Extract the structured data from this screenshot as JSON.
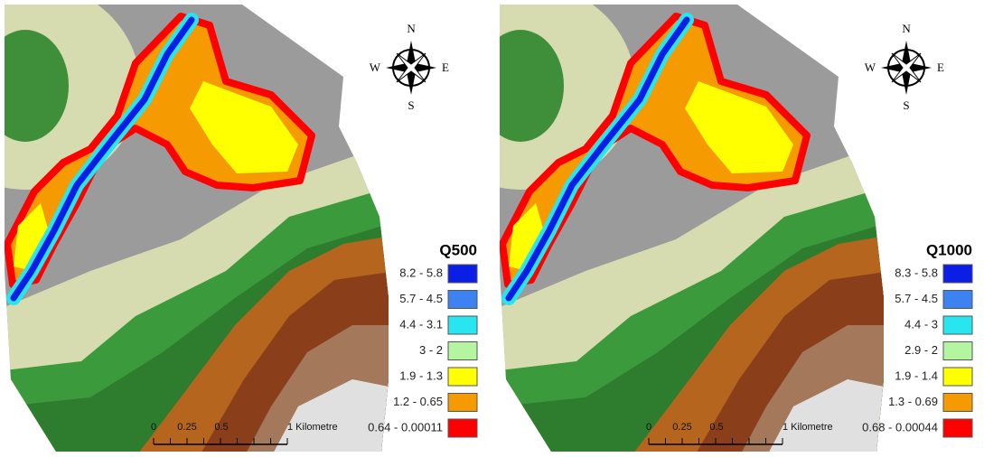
{
  "panels": [
    {
      "title": "Q500",
      "compass": {
        "n": "N",
        "e": "E",
        "s": "S",
        "w": "W"
      },
      "scale_labels": [
        "0",
        "0.25",
        "0.5",
        "1 Kilometre"
      ],
      "legend": [
        {
          "label": "8.2 - 5.8",
          "color": "#0a1ee6"
        },
        {
          "label": "5.7 - 4.5",
          "color": "#3c82f0"
        },
        {
          "label": "4.4 - 3.1",
          "color": "#28e6f0"
        },
        {
          "label": "3 - 2",
          "color": "#b4f5a0"
        },
        {
          "label": "1.9 - 1.3",
          "color": "#ffff00"
        },
        {
          "label": "1.2 - 0.65",
          "color": "#f59a00"
        },
        {
          "label": "0.64 - 0.00011",
          "color": "#ff0000"
        }
      ]
    },
    {
      "title": "Q1000",
      "compass": {
        "n": "N",
        "e": "E",
        "s": "S",
        "w": "W"
      },
      "scale_labels": [
        "0",
        "0.25",
        "0.5",
        "1 Kilometre"
      ],
      "legend": [
        {
          "label": "8.3 - 5.8",
          "color": "#0a1ee6"
        },
        {
          "label": "5.7 - 4.5",
          "color": "#3c82f0"
        },
        {
          "label": "4.4 - 3",
          "color": "#28e6f0"
        },
        {
          "label": "2.9 - 2",
          "color": "#b4f5a0"
        },
        {
          "label": "1.9 - 1.4",
          "color": "#ffff00"
        },
        {
          "label": "1.3 - 0.69",
          "color": "#f59a00"
        },
        {
          "label": "0.68 - 0.00044",
          "color": "#ff0000"
        }
      ]
    }
  ]
}
